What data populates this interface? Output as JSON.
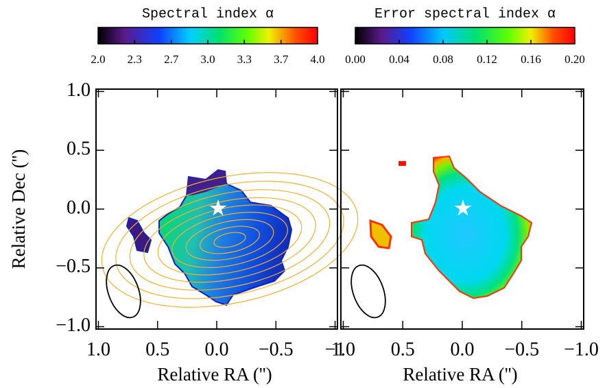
{
  "chart_data": [
    {
      "type": "image",
      "colorbar": {
        "title": "Spectral index α",
        "lim": [
          2.0,
          4.0
        ],
        "ticks": [
          {
            "value": 2.0,
            "label": "2.0"
          },
          {
            "value": 2.333,
            "label": "2.3"
          },
          {
            "value": 2.667,
            "label": "2.7"
          },
          {
            "value": 3.0,
            "label": "3.0"
          },
          {
            "value": 3.333,
            "label": "3.3"
          },
          {
            "value": 3.667,
            "label": "3.7"
          },
          {
            "value": 4.0,
            "label": "4.0"
          }
        ]
      },
      "xlabel": "Relative RA ('')",
      "ylabel": "Relative Dec ('')",
      "xlim": [
        1.02,
        -1.02
      ],
      "ylim": [
        -1.02,
        1.02
      ],
      "xticks": [
        {
          "value": 1.0,
          "label": "1.0"
        },
        {
          "value": 0.5,
          "label": "0.5"
        },
        {
          "value": 0.0,
          "label": "0.0"
        },
        {
          "value": -0.5,
          "label": "−0.5"
        },
        {
          "value": -1.0,
          "label": "−1"
        }
      ],
      "yticks": [
        {
          "value": 1.0,
          "label": "1.0"
        },
        {
          "value": 0.5,
          "label": "0.5"
        },
        {
          "value": 0.0,
          "label": "0.0"
        },
        {
          "value": -0.5,
          "label": "−0.5"
        },
        {
          "value": -1.0,
          "label": "−1.0"
        }
      ]
    },
    {
      "type": "image",
      "colorbar": {
        "title": "Error spectral index α",
        "lim": [
          0.0,
          0.2
        ],
        "ticks": [
          {
            "value": 0.0,
            "label": "0.00"
          },
          {
            "value": 0.04,
            "label": "0.04"
          },
          {
            "value": 0.08,
            "label": "0.08"
          },
          {
            "value": 0.12,
            "label": "0.12"
          },
          {
            "value": 0.16,
            "label": "0.16"
          },
          {
            "value": 0.2,
            "label": "0.20"
          }
        ]
      },
      "xlabel": "Relative RA ('')",
      "xlim": [
        1.02,
        -1.02
      ],
      "ylim": [
        -1.02,
        1.02
      ],
      "xticks": [
        {
          "value": 1.0,
          "label": "1.0"
        },
        {
          "value": 0.5,
          "label": "0.5"
        },
        {
          "value": 0.0,
          "label": "0.0"
        },
        {
          "value": -0.5,
          "label": "−0.5"
        },
        {
          "value": -1.0,
          "label": "−1.0"
        }
      ],
      "yticks": [
        -1,
        -0.5,
        0,
        0.5,
        1
      ]
    }
  ]
}
